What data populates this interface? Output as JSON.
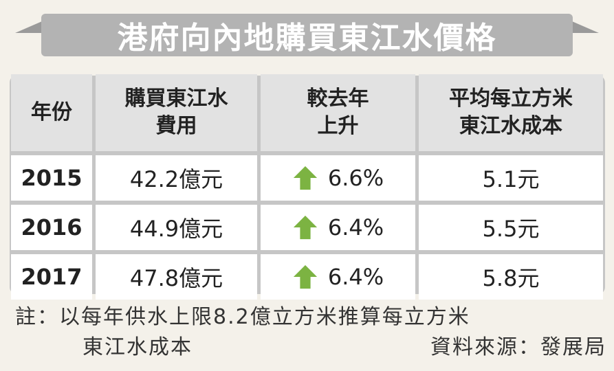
{
  "title": "港府向內地購買東江水價格",
  "chart_data": {
    "type": "table",
    "columns": [
      "年份",
      "購買東江水費用",
      "較去年上升",
      "平均每立方米東江水成本"
    ],
    "rows": [
      {
        "year": "2015",
        "cost": "42.2億元",
        "change": "6.6%",
        "unit_cost": "5.1元"
      },
      {
        "year": "2016",
        "cost": "44.9億元",
        "change": "6.4%",
        "unit_cost": "5.5元"
      },
      {
        "year": "2017",
        "cost": "47.8億元",
        "change": "6.4%",
        "unit_cost": "5.8元"
      }
    ]
  },
  "headers": {
    "year": "年份",
    "cost_l1": "購買東江水",
    "cost_l2": "費用",
    "change_l1": "較去年",
    "change_l2": "上升",
    "unit_l1": "平均每立方米",
    "unit_l2": "東江水成本"
  },
  "rows": [
    {
      "year": "2015",
      "cost": "42.2億元",
      "change": "6.6%",
      "unit_cost": "5.1元"
    },
    {
      "year": "2016",
      "cost": "44.9億元",
      "change": "6.4%",
      "unit_cost": "5.5元"
    },
    {
      "year": "2017",
      "cost": "47.8億元",
      "change": "6.4%",
      "unit_cost": "5.8元"
    }
  ],
  "note": {
    "line1": "註：以每年供水上限8.2億立方米推算每立方米",
    "line2": "東江水成本",
    "source": "資料來源：發展局"
  },
  "colors": {
    "banner": "#b3b3b3",
    "panel": "#c6c6c6",
    "header_bg": "#e2e2e2",
    "arrow": "#7cb342",
    "background": "#f4f1ea"
  },
  "icons": {
    "change": "up-arrow-icon"
  }
}
